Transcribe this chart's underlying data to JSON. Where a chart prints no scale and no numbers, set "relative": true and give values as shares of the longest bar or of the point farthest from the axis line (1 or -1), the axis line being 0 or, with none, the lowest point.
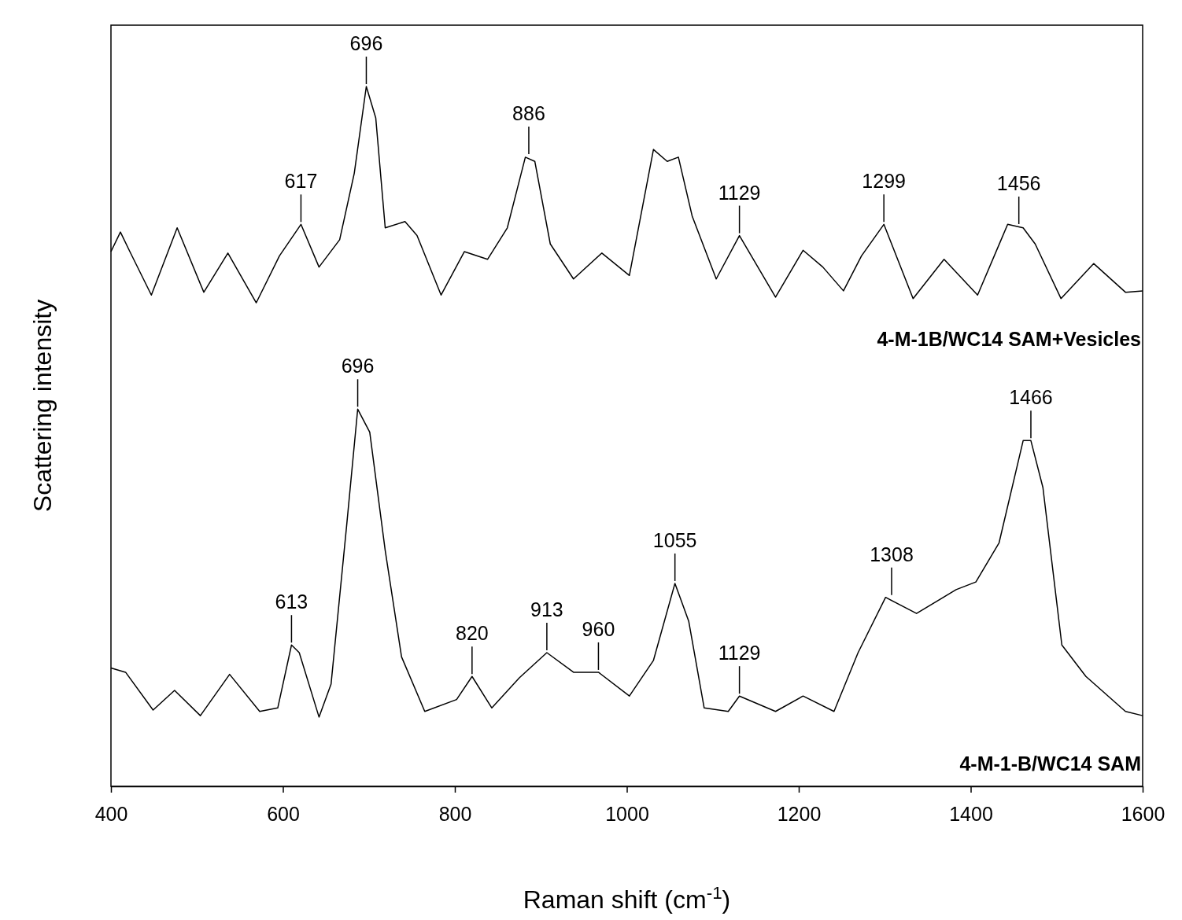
{
  "chart_data": {
    "type": "line",
    "relative": true,
    "xlabel": "Raman shift (cm$^{-1}$)",
    "ylabel": "Scattering intensity",
    "xlim": [
      400,
      1600
    ],
    "xticks": [
      400,
      600,
      800,
      1000,
      1200,
      1400,
      1600
    ],
    "grid": false,
    "legend": false,
    "marker": "none",
    "line_style": "solid",
    "series": [
      {
        "name": "4-M-1B/WC14 SAM+Vesicles",
        "color": "#000000",
        "x": [
          400,
          411,
          422,
          447,
          477,
          508,
          536,
          569,
          596,
          621,
          642,
          666,
          683,
          697,
          708,
          719,
          742,
          756,
          784,
          811,
          838,
          861,
          882,
          893,
          911,
          938,
          971,
          1003,
          1031,
          1047,
          1060,
          1076,
          1104,
          1131,
          1173,
          1205,
          1228,
          1252,
          1273,
          1299,
          1333,
          1369,
          1408,
          1443,
          1461,
          1475,
          1505,
          1543,
          1580,
          1600
        ],
        "values": [
          0.764,
          0.792,
          0.764,
          0.702,
          0.798,
          0.706,
          0.762,
          0.691,
          0.758,
          0.803,
          0.742,
          0.781,
          0.876,
          1.0,
          0.955,
          0.798,
          0.807,
          0.787,
          0.702,
          0.764,
          0.753,
          0.798,
          0.899,
          0.893,
          0.775,
          0.725,
          0.762,
          0.73,
          0.91,
          0.893,
          0.899,
          0.815,
          0.725,
          0.787,
          0.699,
          0.766,
          0.742,
          0.708,
          0.758,
          0.803,
          0.697,
          0.753,
          0.702,
          0.803,
          0.798,
          0.775,
          0.697,
          0.747,
          0.706,
          0.708
        ]
      },
      {
        "name": "4-M-1-B/WC14 SAM",
        "color": "#000000",
        "x": [
          400,
          417,
          449,
          474,
          504,
          538,
          573,
          594,
          610,
          619,
          642,
          656,
          674,
          687,
          701,
          719,
          738,
          765,
          802,
          820,
          843,
          875,
          907,
          938,
          967,
          1003,
          1031,
          1056,
          1072,
          1090,
          1118,
          1131,
          1173,
          1205,
          1241,
          1269,
          1301,
          1337,
          1383,
          1406,
          1433,
          1461,
          1470,
          1484,
          1506,
          1534,
          1580,
          1600
        ],
        "values": [
          0.169,
          0.163,
          0.109,
          0.137,
          0.101,
          0.16,
          0.107,
          0.112,
          0.202,
          0.191,
          0.099,
          0.146,
          0.371,
          0.539,
          0.506,
          0.337,
          0.185,
          0.107,
          0.124,
          0.157,
          0.112,
          0.155,
          0.191,
          0.163,
          0.163,
          0.129,
          0.18,
          0.29,
          0.236,
          0.112,
          0.107,
          0.129,
          0.107,
          0.129,
          0.107,
          0.191,
          0.27,
          0.247,
          0.281,
          0.292,
          0.348,
          0.494,
          0.494,
          0.427,
          0.202,
          0.157,
          0.107,
          0.101
        ]
      }
    ],
    "annotations": [
      {
        "text": "617",
        "x": 621,
        "y": 0.803
      },
      {
        "text": "696",
        "x": 697,
        "y": 1.0
      },
      {
        "text": "886",
        "x": 886,
        "y": 0.9
      },
      {
        "text": "1129",
        "x": 1131,
        "y": 0.787
      },
      {
        "text": "1299",
        "x": 1299,
        "y": 0.803
      },
      {
        "text": "1456",
        "x": 1456,
        "y": 0.8
      },
      {
        "text": "613",
        "x": 610,
        "y": 0.202
      },
      {
        "text": "696",
        "x": 687,
        "y": 0.539
      },
      {
        "text": "820",
        "x": 820,
        "y": 0.157
      },
      {
        "text": "913",
        "x": 907,
        "y": 0.191
      },
      {
        "text": "960",
        "x": 967,
        "y": 0.163
      },
      {
        "text": "1055",
        "x": 1056,
        "y": 0.29
      },
      {
        "text": "1129",
        "x": 1131,
        "y": 0.129
      },
      {
        "text": "1308",
        "x": 1308,
        "y": 0.27
      },
      {
        "text": "1466",
        "x": 1470,
        "y": 0.494
      }
    ]
  }
}
